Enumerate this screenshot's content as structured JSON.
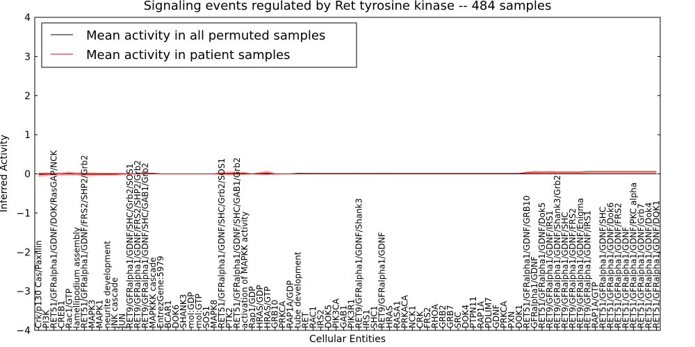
{
  "chart_data": {
    "type": "line",
    "title": "Signaling events regulated by Ret tyrosine kinase -- 484 samples",
    "xlabel": "Cellular Entities",
    "ylabel": "Inferred Activity",
    "ylim": [
      -4,
      4
    ],
    "yticks": [
      -4,
      -3,
      -2,
      -1,
      0,
      1,
      2,
      3,
      4
    ],
    "grid": false,
    "legend_position": "top-left",
    "categories": [
      "Crk/p130 Cas/Paxillin",
      "PI3K",
      "RET51/GFRalpha1/GDNF/DOK/RasGAP/NCK",
      "CREB1",
      "Rac1/GTP",
      "lamellipodium assembly",
      "RET51/GFRalpha1/GDNF/FRS2/SHP2/Grb2",
      "MAPK3",
      "MAPK1",
      "neurite development",
      "JNK cascade",
      "JUN",
      "RET9/GFRalpha1/GDNF/SHC/Grb2/SOS1",
      "RET9/GFRalpha1/GDNF/FRS2/SHP2/Grb2",
      "RET9/GFRalpha1/GDNF/SHC/GAB1/Grb2",
      "MAPKKK cascade",
      "EntrezGene:5979",
      "BCAR1",
      "DOK6",
      "SHANK3",
      "mol:GDP",
      "mol:GTP",
      "SOS1",
      "MAPK8",
      "RET51/GFRalpha1/GDNF/SHC/Grb2/SOS1",
      "PTK2",
      "RET51/GFRalpha1/GDNF/SHC/GAB1/Grb2",
      "activation of MAPKK activity",
      "Rap1/GDP",
      "HRAS/GDP",
      "HRAS/GTP",
      "GRB10",
      "PRKCA",
      "RAP1A/GDP",
      "tube development",
      "RET",
      "RAC1",
      "IRS2",
      "DOK5",
      "PIK3CA",
      "GAB1",
      "PIK3R1",
      "RET9/GFRalpha1/GDNF/Shank3",
      "IRS1",
      "SHC1",
      "RET9/GFRalpha1/GDNF",
      "HRAS",
      "RASA1",
      "PRKACA",
      "NCK1",
      "CRK",
      "FRS2",
      "RHOA",
      "GRB2",
      "GRB7",
      "SRC",
      "DOK4",
      "PTPN11",
      "RAP1A",
      "PDLIM7",
      "GDNF",
      "PRKCA",
      "PXN",
      "DOK1",
      "RET51/GFRalpha1/GDNF/GRB10",
      "GFRalpha1/GDNF",
      "RET51/GFRalpha1/GDNF/Dok5",
      "RET9/GFRalpha1/GDNF/IRS1",
      "RET9/GFRalpha1/GDNF/Shank3/Grb2",
      "RET9/GFRalpha1/GDNF/SHC",
      "RET9/GFRalpha1/GDNF/FRS2",
      "RET9/GFRalpha1/GDNF/Enigma",
      "RET9/GFRalpha1/GDNF/IRS1",
      "RAP1A/GTP",
      "RET51/GFRalpha1/GDNF/SHC",
      "RET51/GFRalpha1/GDNF/Dok6",
      "RET51/GFRalpha1/GDNF/FRS2",
      "RET51/GFRalpha1/GDNF",
      "RET51/GFRalpha1/GDNF/PKC alpha",
      "RET51/GFRalpha1/GDNF/Grb7",
      "RET51/GFRalpha1/GDNF/Dok4",
      "RET51/GFRalpha1/GDNF/DOK1"
    ],
    "series": [
      {
        "name": "Mean activity in all permuted samples",
        "color": "#000000",
        "values": [
          0,
          0,
          0,
          0,
          0,
          0,
          0,
          0,
          0,
          0,
          0,
          0,
          0,
          0,
          0,
          0,
          0,
          0,
          0,
          0,
          0,
          0,
          0,
          0,
          0,
          0,
          0,
          0,
          0,
          0,
          0,
          0,
          0,
          0,
          0,
          0,
          0,
          0,
          0,
          0,
          0,
          0,
          0,
          0,
          0,
          0,
          0,
          0,
          0,
          0,
          0,
          0,
          0,
          0,
          0,
          0,
          0,
          0,
          0,
          0,
          0,
          0,
          0,
          0,
          0,
          0,
          0,
          0,
          0,
          0,
          0,
          0,
          0,
          0,
          0,
          0,
          0,
          0,
          0,
          0,
          0,
          0
        ]
      },
      {
        "name": "Mean activity in patient samples",
        "color": "#ff0000",
        "band_color": "#f08080",
        "values": [
          -0.02,
          -0.01,
          0.0,
          0.0,
          0.01,
          0.0,
          -0.01,
          -0.01,
          -0.01,
          -0.01,
          -0.01,
          0.0,
          0.0,
          0.0,
          0.01,
          0.01,
          0.0,
          0.0,
          0.0,
          0.0,
          0.0,
          0.0,
          0.0,
          0.0,
          0.01,
          0.01,
          0.01,
          0.01,
          0.0,
          0.01,
          0.02,
          0.0,
          0.0,
          0.0,
          0.01,
          0.01,
          0.01,
          0.01,
          0.01,
          0.01,
          0.01,
          0.01,
          0.01,
          0.01,
          0.01,
          0.01,
          0.01,
          0.01,
          0.01,
          0.01,
          0.01,
          0.01,
          0.01,
          0.01,
          0.01,
          0.01,
          0.01,
          0.01,
          0.01,
          0.01,
          0.01,
          0.01,
          0.01,
          0.01,
          0.03,
          0.04,
          0.04,
          0.04,
          0.04,
          0.04,
          0.04,
          0.04,
          0.05,
          0.05,
          0.05,
          0.05,
          0.05,
          0.05,
          0.05,
          0.05,
          0.05,
          0.05
        ],
        "band_halfwidth": [
          0.06,
          0.05,
          0.04,
          0.04,
          0.05,
          0.04,
          0.05,
          0.05,
          0.04,
          0.04,
          0.04,
          0.03,
          0.01,
          0.01,
          0.02,
          0.02,
          0.01,
          0.0,
          0.0,
          0.0,
          0.0,
          0.0,
          0.01,
          0.01,
          0.04,
          0.05,
          0.05,
          0.04,
          0.01,
          0.04,
          0.06,
          0.02,
          0.01,
          0.01,
          0.02,
          0.01,
          0.01,
          0.0,
          0.0,
          0.0,
          0.0,
          0.0,
          0.01,
          0.0,
          0.0,
          0.01,
          0.01,
          0.0,
          0.0,
          0.0,
          0.0,
          0.0,
          0.0,
          0.0,
          0.0,
          0.0,
          0.0,
          0.0,
          0.0,
          0.0,
          0.0,
          0.0,
          0.0,
          0.0,
          0.03,
          0.04,
          0.03,
          0.04,
          0.03,
          0.03,
          0.03,
          0.03,
          0.03,
          0.03,
          0.03,
          0.03,
          0.03,
          0.03,
          0.03,
          0.03,
          0.03,
          0.03
        ]
      }
    ]
  }
}
